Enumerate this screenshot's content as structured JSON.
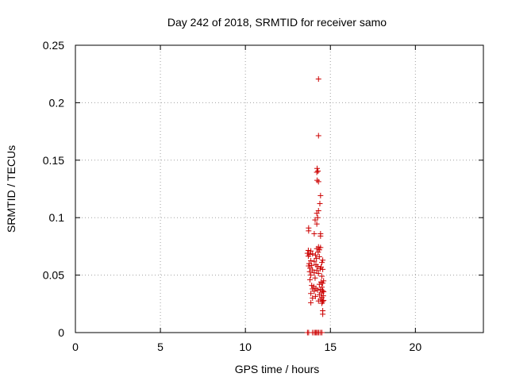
{
  "chart_data": {
    "type": "scatter",
    "title": "Day 242 of 2018, SRMTID for receiver samo",
    "xlabel": "GPS time / hours",
    "ylabel": "SRMTID / TECUs",
    "xlim": [
      0,
      24
    ],
    "ylim": [
      0,
      0.25
    ],
    "xticks": [
      0,
      5,
      10,
      15,
      20
    ],
    "yticks": [
      0,
      0.05,
      0.1,
      0.15,
      0.2,
      0.25
    ],
    "ytick_labels": [
      "0",
      "0.05",
      "0.1",
      "0.15",
      "0.2",
      "0.25"
    ],
    "grid": true,
    "legend": "none",
    "marker": "+",
    "color": "#cc0000",
    "points": [
      [
        13.65,
        0.0
      ],
      [
        13.72,
        0.0
      ],
      [
        13.95,
        0.0
      ],
      [
        14.05,
        0.0
      ],
      [
        14.12,
        0.0
      ],
      [
        14.18,
        0.0
      ],
      [
        14.25,
        0.0
      ],
      [
        14.32,
        0.0
      ],
      [
        14.42,
        0.0
      ],
      [
        14.5,
        0.0
      ],
      [
        14.3,
        0.2206
      ],
      [
        14.3,
        0.1713
      ],
      [
        14.22,
        0.1428
      ],
      [
        14.27,
        0.1405
      ],
      [
        14.2,
        0.1395
      ],
      [
        14.22,
        0.1325
      ],
      [
        14.3,
        0.1313
      ],
      [
        14.42,
        0.1192
      ],
      [
        14.38,
        0.1122
      ],
      [
        14.3,
        0.106
      ],
      [
        14.2,
        0.1038
      ],
      [
        14.25,
        0.1
      ],
      [
        14.1,
        0.098
      ],
      [
        14.2,
        0.0945
      ],
      [
        13.72,
        0.091
      ],
      [
        13.72,
        0.0885
      ],
      [
        14.05,
        0.086
      ],
      [
        14.42,
        0.086
      ],
      [
        14.42,
        0.084
      ],
      [
        14.3,
        0.0745
      ],
      [
        14.42,
        0.074
      ],
      [
        14.2,
        0.073
      ],
      [
        14.35,
        0.072
      ],
      [
        13.7,
        0.0715
      ],
      [
        13.85,
        0.071
      ],
      [
        14.28,
        0.07
      ],
      [
        13.65,
        0.069
      ],
      [
        13.95,
        0.0685
      ],
      [
        13.78,
        0.068
      ],
      [
        14.12,
        0.0675
      ],
      [
        13.7,
        0.0665
      ],
      [
        14.35,
        0.066
      ],
      [
        14.18,
        0.0645
      ],
      [
        14.55,
        0.063
      ],
      [
        13.85,
        0.0625
      ],
      [
        14.05,
        0.062
      ],
      [
        14.5,
        0.061
      ],
      [
        13.75,
        0.06
      ],
      [
        14.15,
        0.059
      ],
      [
        13.9,
        0.0585
      ],
      [
        13.72,
        0.058
      ],
      [
        14.25,
        0.0575
      ],
      [
        14.45,
        0.057
      ],
      [
        13.8,
        0.056
      ],
      [
        14.4,
        0.0555
      ],
      [
        14.55,
        0.055
      ],
      [
        13.95,
        0.0545
      ],
      [
        14.2,
        0.054
      ],
      [
        13.78,
        0.053
      ],
      [
        14.05,
        0.052
      ],
      [
        14.3,
        0.0515
      ],
      [
        13.85,
        0.05
      ],
      [
        14.5,
        0.049
      ],
      [
        14.1,
        0.0475
      ],
      [
        13.8,
        0.046
      ],
      [
        14.6,
        0.045
      ],
      [
        14.45,
        0.044
      ],
      [
        14.55,
        0.043
      ],
      [
        14.35,
        0.042
      ],
      [
        13.9,
        0.041
      ],
      [
        14.02,
        0.04
      ],
      [
        14.5,
        0.0395
      ],
      [
        14.15,
        0.0385
      ],
      [
        13.95,
        0.038
      ],
      [
        14.4,
        0.0375
      ],
      [
        14.25,
        0.037
      ],
      [
        14.55,
        0.0365
      ],
      [
        14.05,
        0.036
      ],
      [
        14.6,
        0.0355
      ],
      [
        14.48,
        0.0345
      ],
      [
        13.85,
        0.034
      ],
      [
        14.35,
        0.033
      ],
      [
        14.58,
        0.032
      ],
      [
        14.12,
        0.0315
      ],
      [
        14.5,
        0.0305
      ],
      [
        13.95,
        0.03
      ],
      [
        14.42,
        0.029
      ],
      [
        14.6,
        0.028
      ],
      [
        14.3,
        0.0275
      ],
      [
        14.55,
        0.027
      ],
      [
        13.85,
        0.026
      ],
      [
        14.5,
        0.0255
      ],
      [
        14.55,
        0.019
      ],
      [
        14.55,
        0.016
      ]
    ]
  }
}
